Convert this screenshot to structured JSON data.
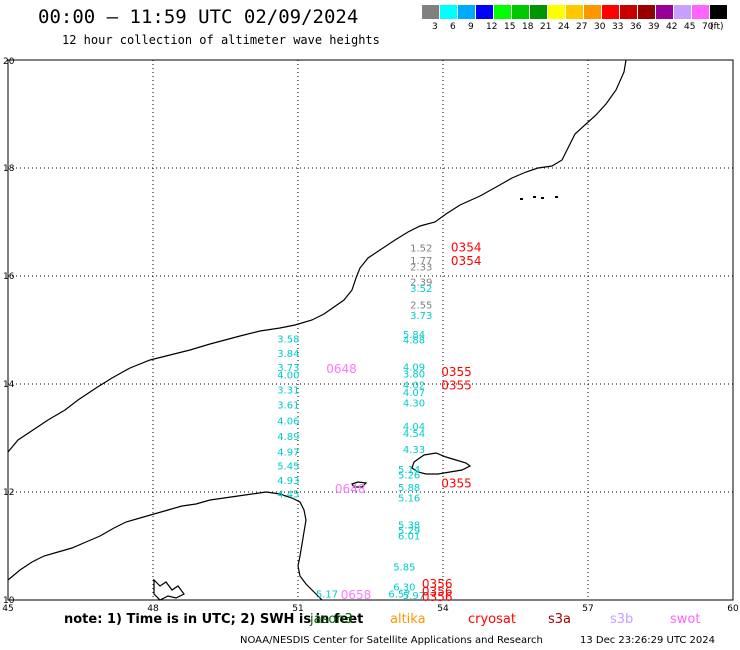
{
  "header": {
    "title": "00:00 – 11:59 UTC 02/09/2024",
    "subtitle": "12 hour collection of altimeter wave heights"
  },
  "legend": {
    "colors": [
      "#808080",
      "#00ffff",
      "#00aaff",
      "#0000ff",
      "#00ff00",
      "#00c800",
      "#009600",
      "#ffff00",
      "#ffc800",
      "#ff9600",
      "#ff0000",
      "#c80000",
      "#960000",
      "#960096",
      "#c8a0ff",
      "#ff64ff",
      "#000000"
    ],
    "labels": [
      "3",
      "6",
      "9",
      "12",
      "15",
      "18",
      "21",
      "24",
      "27",
      "30",
      "33",
      "36",
      "39",
      "42",
      "45",
      "70",
      "(ft)"
    ]
  },
  "axes": {
    "lon_ticks": [
      "45",
      "48",
      "51",
      "54",
      "57",
      "60"
    ],
    "lat_ticks": [
      "20",
      "18",
      "16",
      "14",
      "12",
      "10"
    ]
  },
  "observations": [
    {
      "text": "1.52",
      "color": "#808080",
      "lon": 53.55,
      "lat": 16.45
    },
    {
      "text": "1.77",
      "color": "#808080",
      "lon": 53.55,
      "lat": 16.22
    },
    {
      "text": "2.33",
      "color": "#808080",
      "lon": 53.55,
      "lat": 16.1
    },
    {
      "text": "2.39",
      "color": "#808080",
      "lon": 53.55,
      "lat": 15.82
    },
    {
      "text": "3.52",
      "color": "#00cccc",
      "lon": 53.55,
      "lat": 15.7
    },
    {
      "text": "2.55",
      "color": "#808080",
      "lon": 53.55,
      "lat": 15.4
    },
    {
      "text": "3.73",
      "color": "#00cccc",
      "lon": 53.55,
      "lat": 15.2
    },
    {
      "text": "3.58",
      "color": "#00cccc",
      "lon": 50.8,
      "lat": 14.77
    },
    {
      "text": "5.84",
      "color": "#00cccc",
      "lon": 53.4,
      "lat": 14.85
    },
    {
      "text": "4.88",
      "color": "#00cccc",
      "lon": 53.4,
      "lat": 14.75
    },
    {
      "text": "3.84",
      "color": "#00cccc",
      "lon": 50.8,
      "lat": 14.5
    },
    {
      "text": "3.73",
      "color": "#00cccc",
      "lon": 50.8,
      "lat": 14.24
    },
    {
      "text": "4.00",
      "color": "#00cccc",
      "lon": 50.8,
      "lat": 14.1
    },
    {
      "text": "4.09",
      "color": "#00cccc",
      "lon": 53.4,
      "lat": 14.25
    },
    {
      "text": "3.80",
      "color": "#00cccc",
      "lon": 53.4,
      "lat": 14.12
    },
    {
      "text": "4.02",
      "color": "#00cccc",
      "lon": 53.4,
      "lat": 13.92
    },
    {
      "text": "4.07",
      "color": "#00cccc",
      "lon": 53.4,
      "lat": 13.78
    },
    {
      "text": "3.31",
      "color": "#00cccc",
      "lon": 50.8,
      "lat": 13.82
    },
    {
      "text": "4.30",
      "color": "#00cccc",
      "lon": 53.4,
      "lat": 13.58
    },
    {
      "text": "3.61",
      "color": "#00cccc",
      "lon": 50.8,
      "lat": 13.55
    },
    {
      "text": "4.06",
      "color": "#00cccc",
      "lon": 50.8,
      "lat": 13.25
    },
    {
      "text": "4.04",
      "color": "#00cccc",
      "lon": 53.4,
      "lat": 13.15
    },
    {
      "text": "4.54",
      "color": "#00cccc",
      "lon": 53.4,
      "lat": 13.02
    },
    {
      "text": "4.89",
      "color": "#00cccc",
      "lon": 50.8,
      "lat": 12.96
    },
    {
      "text": "4.33",
      "color": "#00cccc",
      "lon": 53.4,
      "lat": 12.72
    },
    {
      "text": "4.97",
      "color": "#00cccc",
      "lon": 50.8,
      "lat": 12.68
    },
    {
      "text": "5.45",
      "color": "#00cccc",
      "lon": 50.8,
      "lat": 12.42
    },
    {
      "text": "5.14",
      "color": "#00cccc",
      "lon": 53.3,
      "lat": 12.35
    },
    {
      "text": "5.26",
      "color": "#00cccc",
      "lon": 53.3,
      "lat": 12.25
    },
    {
      "text": "4.93",
      "color": "#00cccc",
      "lon": 50.8,
      "lat": 12.15
    },
    {
      "text": "5.88",
      "color": "#00cccc",
      "lon": 53.3,
      "lat": 12.02
    },
    {
      "text": "4.45",
      "color": "#00cccc",
      "lon": 50.8,
      "lat": 11.9
    },
    {
      "text": "5.16",
      "color": "#00cccc",
      "lon": 53.3,
      "lat": 11.82
    },
    {
      "text": "5.38",
      "color": "#00cccc",
      "lon": 53.3,
      "lat": 11.32
    },
    {
      "text": "5.29",
      "color": "#00cccc",
      "lon": 53.3,
      "lat": 11.22
    },
    {
      "text": "6.01",
      "color": "#00cccc",
      "lon": 53.3,
      "lat": 11.12
    },
    {
      "text": "5.85",
      "color": "#00cccc",
      "lon": 53.2,
      "lat": 10.55
    },
    {
      "text": "6.30",
      "color": "#00cccc",
      "lon": 53.2,
      "lat": 10.18
    },
    {
      "text": "5.17",
      "color": "#00cccc",
      "lon": 51.6,
      "lat": 10.05
    },
    {
      "text": "6.57",
      "color": "#00cccc",
      "lon": 53.1,
      "lat": 10.05
    },
    {
      "text": "5.97",
      "color": "#00cccc",
      "lon": 53.4,
      "lat": 10.02
    }
  ],
  "pass_labels": [
    {
      "text": "0354",
      "color": "#ff0000",
      "lon": 54.48,
      "lat": 16.45
    },
    {
      "text": "0354",
      "color": "#ff0000",
      "lon": 54.48,
      "lat": 16.2
    },
    {
      "text": "0648",
      "color": "#ff77ff",
      "lon": 51.9,
      "lat": 14.2
    },
    {
      "text": "0355",
      "color": "#ff0000",
      "lon": 54.28,
      "lat": 14.15
    },
    {
      "text": "0355",
      "color": "#ff0000",
      "lon": 54.28,
      "lat": 13.9
    },
    {
      "text": "0648",
      "color": "#ff77ff",
      "lon": 52.08,
      "lat": 11.98
    },
    {
      "text": "0355",
      "color": "#ff0000",
      "lon": 54.28,
      "lat": 12.08
    },
    {
      "text": "0356",
      "color": "#ff0000",
      "lon": 53.88,
      "lat": 10.22
    },
    {
      "text": "0658",
      "color": "#ff77ff",
      "lon": 52.2,
      "lat": 10.02
    },
    {
      "text": "0356",
      "color": "#ff0000",
      "lon": 53.88,
      "lat": 10.08
    },
    {
      "text": "0356",
      "color": "#ff0000",
      "lon": 53.88,
      "lat": 9.98
    }
  ],
  "note": "note: 1) Time is in UTC; 2) SWH is in feet",
  "satellites": [
    {
      "name": "jason3",
      "color": "#006400"
    },
    {
      "name": "altika",
      "color": "#ff9600"
    },
    {
      "name": "cryosat",
      "color": "#ff0000"
    },
    {
      "name": "s3a",
      "color": "#960000"
    },
    {
      "name": "s3b",
      "color": "#c8a0ff"
    },
    {
      "name": "swot",
      "color": "#ff64ff"
    }
  ],
  "footer": {
    "credit": "NOAA/NESDIS Center for Satellite Applications and Research",
    "timestamp": "13 Dec 23:26:29 UTC 2024"
  }
}
